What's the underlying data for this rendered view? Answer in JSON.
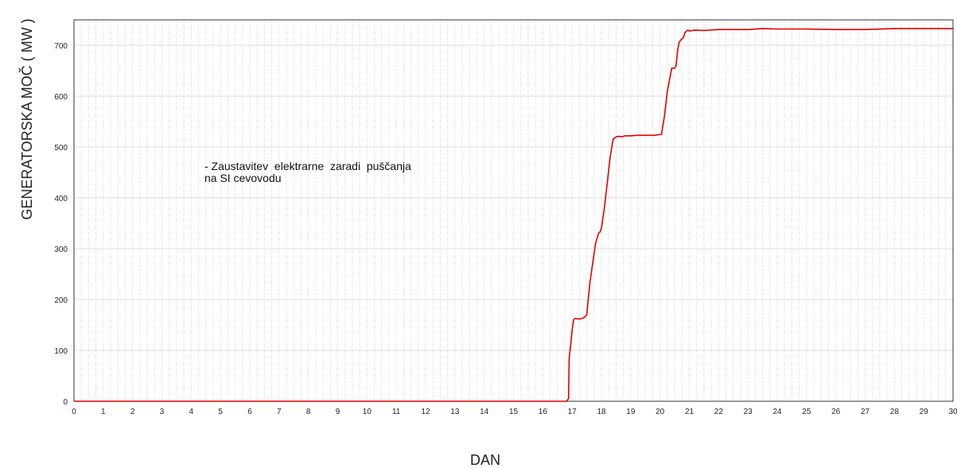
{
  "chart_data": {
    "type": "line",
    "title": "",
    "xlabel": "DAN",
    "ylabel": "GENERATORSKA MOČ ( MW )",
    "xlim": [
      0,
      30
    ],
    "ylim": [
      0,
      750
    ],
    "x_ticks": [
      "0",
      "1",
      "2",
      "3",
      "4",
      "5",
      "6",
      "7",
      "8",
      "9",
      "10",
      "11",
      "12",
      "13",
      "14",
      "15",
      "16",
      "17",
      "18",
      "19",
      "20",
      "21",
      "22",
      "23",
      "24",
      "25",
      "26",
      "27",
      "28",
      "29",
      "30"
    ],
    "y_ticks": [
      "0",
      "100",
      "200",
      "300",
      "400",
      "500",
      "600",
      "700"
    ],
    "grid": {
      "vertical_step": 0.25,
      "horizontal_step": 100
    },
    "annotation": [
      "- Zaustavitev  elektrarne  zaradi  puščanja",
      "na SI cevovodu"
    ],
    "series": [
      {
        "color": "#e00000",
        "x": [
          0,
          16.8,
          16.88,
          16.9,
          16.95,
          17.0,
          17.05,
          17.1,
          17.15,
          17.2,
          17.3,
          17.4,
          17.5,
          17.55,
          17.6,
          17.7,
          17.8,
          17.9,
          17.95,
          18.0,
          18.1,
          18.2,
          18.3,
          18.4,
          18.5,
          18.6,
          18.7,
          18.8,
          19.0,
          19.2,
          19.5,
          19.8,
          20.05,
          20.15,
          20.25,
          20.35,
          20.4,
          20.5,
          20.55,
          20.6,
          20.65,
          20.7,
          20.8,
          20.85,
          20.95,
          21.0,
          21.2,
          21.5,
          22.0,
          23.0,
          23.5,
          24.0,
          25.0,
          26.0,
          27.0,
          28.0,
          29.0,
          30.0
        ],
        "y": [
          0,
          0,
          5,
          85,
          110,
          140,
          160,
          163,
          162,
          162,
          162,
          164,
          170,
          200,
          230,
          270,
          310,
          330,
          333,
          340,
          380,
          430,
          480,
          515,
          520,
          521,
          520,
          522,
          522,
          523,
          523,
          523,
          525,
          560,
          610,
          640,
          655,
          655,
          660,
          690,
          705,
          710,
          715,
          725,
          730,
          728,
          730,
          729,
          731,
          731,
          733,
          732,
          732,
          731,
          731,
          733,
          733,
          733
        ]
      }
    ]
  }
}
